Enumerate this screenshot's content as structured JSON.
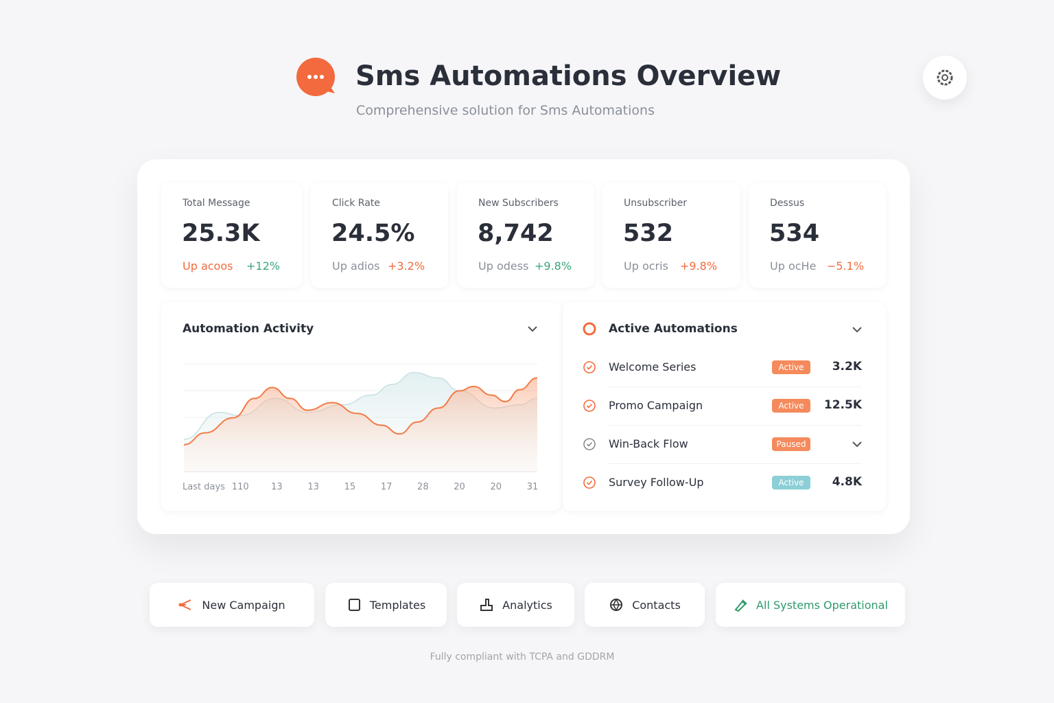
{
  "header": {
    "title": "Sms Automations Overview",
    "subtitle": "Comprehensive solution for Sms Automations"
  },
  "stats": [
    {
      "label": "Total Message",
      "value": "25.3K",
      "note": "Up acoos",
      "change": "+12%"
    },
    {
      "label": "Click Rate",
      "value": "24.5%",
      "note": "Up adios",
      "change": "+3.2%"
    },
    {
      "label": "New Subscribers",
      "value": "8,742",
      "note": "Up odess",
      "change": "+9.8%"
    },
    {
      "label": "Unsubscriber",
      "value": "532",
      "note": "Up ocris",
      "change": "+9.8%"
    },
    {
      "label": "Dessus",
      "value": "534",
      "note": "Up ocHe",
      "change": "−5.1%"
    }
  ],
  "activity": {
    "title": "Automation Activity",
    "chart": {
      "type": "line",
      "categories": [
        "Last days",
        "110",
        "13",
        "13",
        "15",
        "17",
        "28",
        "20",
        "20",
        "31"
      ],
      "xlim": [
        0,
        100
      ],
      "ylim": [
        0,
        100
      ],
      "series": [
        {
          "color": "#f47a45",
          "x": [
            0,
            6,
            14,
            20,
            25,
            30,
            35,
            42,
            49,
            56,
            61,
            66,
            72,
            78,
            82,
            87,
            91,
            95,
            100
          ],
          "values": [
            25,
            36,
            50,
            68,
            78,
            68,
            57,
            64,
            54,
            43,
            35,
            46,
            59,
            75,
            79,
            71,
            65,
            76,
            87
          ]
        },
        {
          "color": "#c9dfe2",
          "x": [
            0,
            10,
            16,
            26,
            35,
            45,
            53,
            59,
            65,
            72,
            78,
            88,
            95,
            100
          ],
          "values": [
            30,
            55,
            52,
            68,
            55,
            62,
            71,
            81,
            92,
            87,
            75,
            59,
            62,
            68
          ]
        }
      ]
    }
  },
  "automations": {
    "title": "Active Automations",
    "rows": [
      {
        "name": "Welcome Series",
        "status": "Active",
        "count": "3.2K"
      },
      {
        "name": "Promo Campaign",
        "status": "Active",
        "count": "12.5K"
      },
      {
        "name": "Win-Back Flow",
        "status": "Paused"
      },
      {
        "name": "Survey Follow-Up",
        "status": "Active",
        "count": "4.8K"
      }
    ]
  },
  "actions": [
    "New Campaign",
    "Templates",
    "Analytics",
    "Contacts",
    "All Systems Operational"
  ],
  "footer": "Fully compliant with TCPA and GDDRM"
}
